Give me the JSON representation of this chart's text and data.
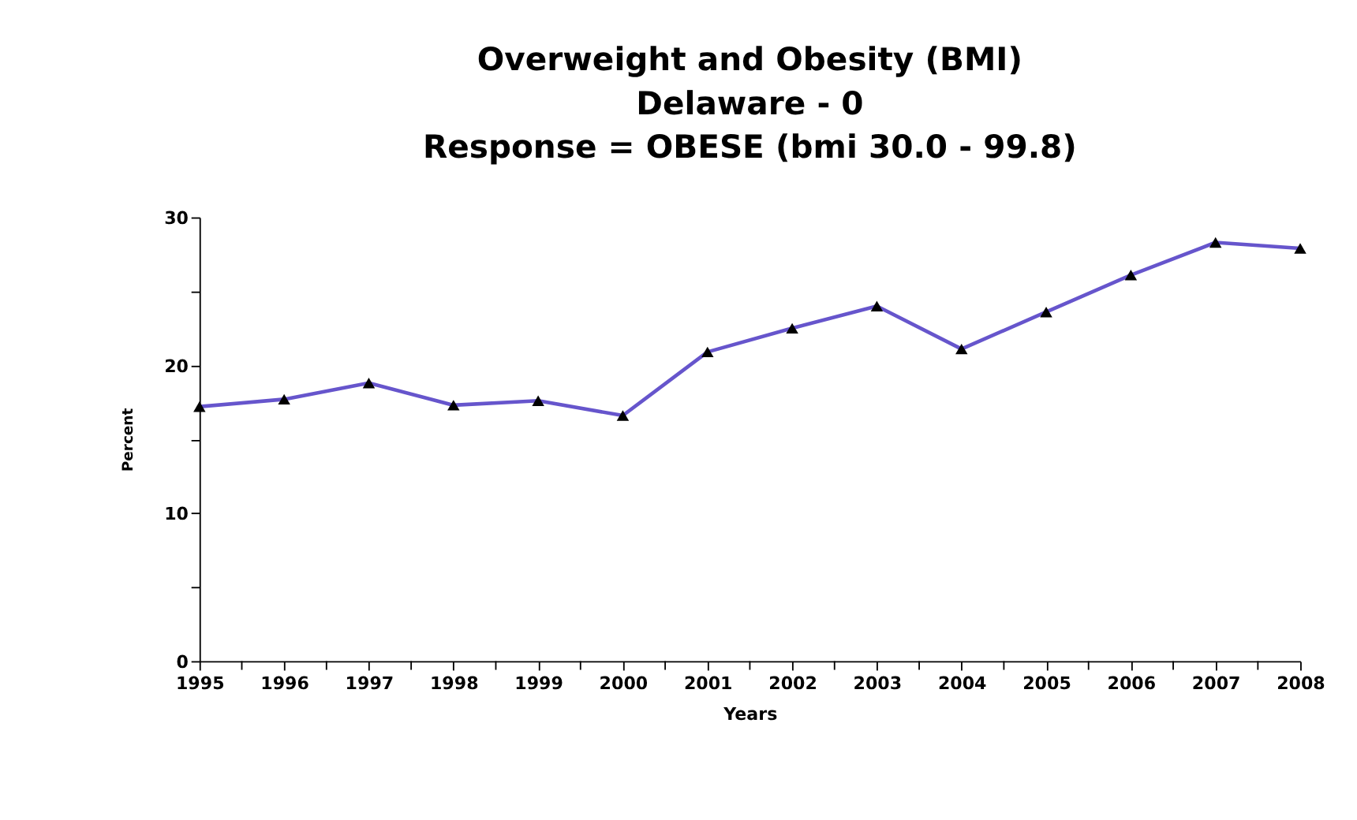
{
  "chart_data": {
    "type": "line",
    "title": "Overweight and Obesity (BMI)\nDelaware - 0\nResponse = OBESE (bmi 30.0 - 99.8)",
    "xlabel": "Years",
    "ylabel": "Percent",
    "x": [
      1995,
      1996,
      1997,
      1998,
      1999,
      2000,
      2001,
      2002,
      2003,
      2004,
      2005,
      2006,
      2007,
      2008
    ],
    "series": [
      {
        "color": "#6655cc",
        "values": [
          17.2,
          17.7,
          18.8,
          17.3,
          17.6,
          16.6,
          20.9,
          22.5,
          24.0,
          21.1,
          23.6,
          26.1,
          28.3,
          27.9
        ]
      }
    ],
    "xlim": [
      1995,
      2008
    ],
    "xticks": [
      1995,
      {
        "value": 1995.5,
        "label": null
      },
      1996,
      {
        "value": 1996.5,
        "label": null
      },
      1997,
      {
        "value": 1997.5,
        "label": null
      },
      1998,
      {
        "value": 1998.5,
        "label": null
      },
      1999,
      {
        "value": 1999.5,
        "label": null
      },
      2000,
      {
        "value": 2000.5,
        "label": null
      },
      2001,
      {
        "value": 2001.5,
        "label": null
      },
      2002,
      {
        "value": 2002.5,
        "label": null
      },
      2003,
      {
        "value": 2003.5,
        "label": null
      },
      2004,
      {
        "value": 2004.5,
        "label": null
      },
      2005,
      {
        "value": 2005.5,
        "label": null
      },
      2006,
      {
        "value": 2006.5,
        "label": null
      },
      2007,
      {
        "value": 2007.5,
        "label": null
      },
      2008
    ],
    "ylim": [
      0,
      30
    ],
    "yticks": [
      0,
      {
        "value": 5,
        "label": null
      },
      10,
      {
        "value": 15,
        "label": null
      },
      20,
      {
        "value": 25,
        "label": null
      },
      30
    ],
    "grid": false,
    "legend": false,
    "marker": "triangle",
    "line_style": "solid"
  }
}
